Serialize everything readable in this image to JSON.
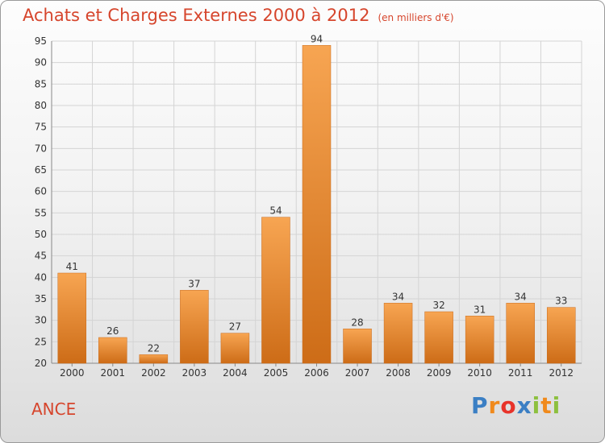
{
  "commune": "ANCE",
  "logo_letters": [
    "P",
    "r",
    "o",
    "x",
    "i",
    "t",
    "i"
  ],
  "logo_colors": [
    "#3b7fc4",
    "#f08a1c",
    "#e8332a",
    "#3b7fc4",
    "#8dc03f",
    "#f08a1c",
    "#8dc03f"
  ],
  "chart_data": {
    "type": "bar",
    "title": "Achats et Charges Externes 2000 à 2012",
    "subtitle": "(en milliers d'€)",
    "xlabel": "",
    "ylabel": "",
    "categories": [
      "2000",
      "2001",
      "2002",
      "2003",
      "2004",
      "2005",
      "2006",
      "2007",
      "2008",
      "2009",
      "2010",
      "2011",
      "2012"
    ],
    "values": [
      41,
      26,
      22,
      37,
      27,
      54,
      94,
      28,
      34,
      32,
      31,
      34,
      33
    ],
    "ylim": [
      20,
      95
    ],
    "yticks": [
      20,
      25,
      30,
      35,
      40,
      45,
      50,
      55,
      60,
      65,
      70,
      75,
      80,
      85,
      90,
      95
    ],
    "grid": true,
    "bar_color_top": "#f7a552",
    "bar_color_bottom": "#cd6c17"
  }
}
